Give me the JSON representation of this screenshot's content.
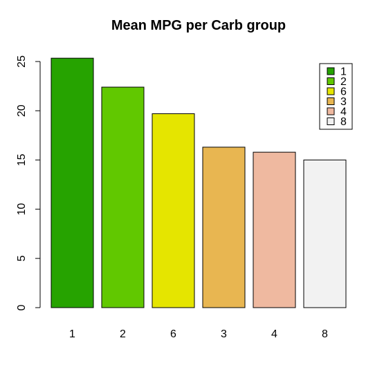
{
  "chart_data": {
    "type": "bar",
    "title": "Mean MPG per Carb group",
    "xlabel": "",
    "ylabel": "",
    "categories": [
      "1",
      "2",
      "6",
      "3",
      "4",
      "8"
    ],
    "values": [
      25.34,
      22.4,
      19.7,
      16.3,
      15.79,
      15.0
    ],
    "colors": [
      "#26A300",
      "#61C800",
      "#E5E500",
      "#E8B651",
      "#EFB9A0",
      "#F2F2F2"
    ],
    "ylim": [
      0,
      25
    ],
    "yticks": [
      0,
      5,
      10,
      15,
      20,
      25
    ],
    "grid": false,
    "legend": {
      "position": "top-right",
      "entries": [
        "1",
        "2",
        "6",
        "3",
        "4",
        "8"
      ]
    }
  }
}
